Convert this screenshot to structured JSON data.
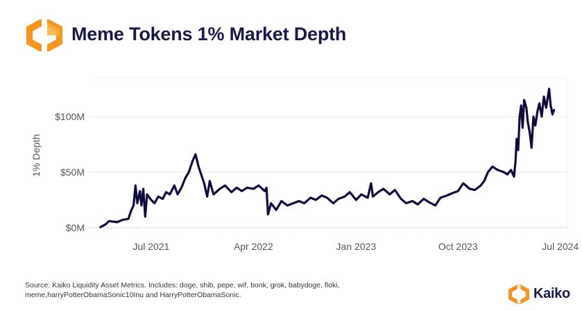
{
  "header": {
    "title": "Meme Tokens 1% Market Depth",
    "logo_icon": "kaiko-hexagon-logo-icon"
  },
  "colors": {
    "title": "#1a1849",
    "line": "#0f0c3d",
    "grid": "#e6e6e6",
    "axis_text": "#555555",
    "brand_orange": "#f7941d"
  },
  "chart_data": {
    "type": "line",
    "title": "",
    "xlabel": "",
    "ylabel": "1% Depth",
    "x_ticks": [
      "Jul 2021",
      "Apr 2022",
      "Jan 2023",
      "Oct 2023",
      "Jul 2024"
    ],
    "y_ticks": [
      "$0M",
      "$50M",
      "$100M"
    ],
    "ylim": [
      0,
      135
    ],
    "xlim": [
      "2021-01-15",
      "2024-07-20"
    ],
    "y_unit": "$M",
    "grid": "horizontal",
    "legend": "none",
    "series": [
      {
        "values": [
          [
            "2021-02-15",
            0.5
          ],
          [
            "2021-03-01",
            3
          ],
          [
            "2021-03-10",
            6
          ],
          [
            "2021-04-01",
            5
          ],
          [
            "2021-04-15",
            7
          ],
          [
            "2021-05-01",
            8
          ],
          [
            "2021-05-08",
            15
          ],
          [
            "2021-05-15",
            20
          ],
          [
            "2021-05-20",
            38
          ],
          [
            "2021-05-25",
            22
          ],
          [
            "2021-06-01",
            33
          ],
          [
            "2021-06-05",
            20
          ],
          [
            "2021-06-10",
            35
          ],
          [
            "2021-06-15",
            10
          ],
          [
            "2021-06-20",
            30
          ],
          [
            "2021-07-01",
            25
          ],
          [
            "2021-07-10",
            22
          ],
          [
            "2021-07-20",
            28
          ],
          [
            "2021-08-01",
            26
          ],
          [
            "2021-08-10",
            32
          ],
          [
            "2021-08-20",
            30
          ],
          [
            "2021-09-01",
            38
          ],
          [
            "2021-09-10",
            30
          ],
          [
            "2021-09-20",
            36
          ],
          [
            "2021-10-01",
            45
          ],
          [
            "2021-10-10",
            50
          ],
          [
            "2021-10-20",
            60
          ],
          [
            "2021-10-28",
            66
          ],
          [
            "2021-11-05",
            55
          ],
          [
            "2021-11-12",
            48
          ],
          [
            "2021-11-20",
            40
          ],
          [
            "2021-11-28",
            28
          ],
          [
            "2021-12-05",
            42
          ],
          [
            "2021-12-15",
            30
          ],
          [
            "2022-01-01",
            35
          ],
          [
            "2022-01-15",
            38
          ],
          [
            "2022-02-01",
            32
          ],
          [
            "2022-02-15",
            36
          ],
          [
            "2022-03-01",
            33
          ],
          [
            "2022-03-15",
            36
          ],
          [
            "2022-04-01",
            35
          ],
          [
            "2022-04-15",
            38
          ],
          [
            "2022-05-01",
            33
          ],
          [
            "2022-05-06",
            36
          ],
          [
            "2022-05-10",
            12
          ],
          [
            "2022-05-18",
            22
          ],
          [
            "2022-06-01",
            16
          ],
          [
            "2022-06-15",
            24
          ],
          [
            "2022-07-01",
            20
          ],
          [
            "2022-08-01",
            24
          ],
          [
            "2022-08-15",
            22
          ],
          [
            "2022-09-01",
            27
          ],
          [
            "2022-09-15",
            25
          ],
          [
            "2022-10-01",
            29
          ],
          [
            "2022-10-15",
            27
          ],
          [
            "2022-11-01",
            22
          ],
          [
            "2022-11-15",
            26
          ],
          [
            "2022-12-01",
            28
          ],
          [
            "2022-12-15",
            32
          ],
          [
            "2023-01-01",
            25
          ],
          [
            "2023-01-15",
            30
          ],
          [
            "2023-02-01",
            27
          ],
          [
            "2023-02-10",
            40
          ],
          [
            "2023-02-15",
            28
          ],
          [
            "2023-03-01",
            32
          ],
          [
            "2023-03-15",
            35
          ],
          [
            "2023-04-01",
            30
          ],
          [
            "2023-04-15",
            34
          ],
          [
            "2023-05-01",
            26
          ],
          [
            "2023-05-15",
            22
          ],
          [
            "2023-06-01",
            24
          ],
          [
            "2023-06-15",
            21
          ],
          [
            "2023-07-01",
            26
          ],
          [
            "2023-07-15",
            23
          ],
          [
            "2023-08-01",
            20
          ],
          [
            "2023-08-15",
            27
          ],
          [
            "2023-09-01",
            29
          ],
          [
            "2023-09-15",
            31
          ],
          [
            "2023-10-01",
            33
          ],
          [
            "2023-10-15",
            40
          ],
          [
            "2023-11-01",
            35
          ],
          [
            "2023-11-15",
            34
          ],
          [
            "2023-12-01",
            38
          ],
          [
            "2023-12-10",
            42
          ],
          [
            "2023-12-20",
            50
          ],
          [
            "2024-01-01",
            55
          ],
          [
            "2024-01-15",
            52
          ],
          [
            "2024-02-01",
            50
          ],
          [
            "2024-02-10",
            48
          ],
          [
            "2024-02-20",
            52
          ],
          [
            "2024-02-28",
            46
          ],
          [
            "2024-03-03",
            60
          ],
          [
            "2024-03-06",
            80
          ],
          [
            "2024-03-10",
            70
          ],
          [
            "2024-03-14",
            100
          ],
          [
            "2024-03-18",
            110
          ],
          [
            "2024-03-22",
            90
          ],
          [
            "2024-03-26",
            115
          ],
          [
            "2024-04-01",
            108
          ],
          [
            "2024-04-05",
            95
          ],
          [
            "2024-04-10",
            86
          ],
          [
            "2024-04-15",
            72
          ],
          [
            "2024-04-20",
            100
          ],
          [
            "2024-04-25",
            92
          ],
          [
            "2024-05-01",
            105
          ],
          [
            "2024-05-06",
            112
          ],
          [
            "2024-05-12",
            100
          ],
          [
            "2024-05-18",
            118
          ],
          [
            "2024-05-24",
            108
          ],
          [
            "2024-06-01",
            125
          ],
          [
            "2024-06-05",
            110
          ],
          [
            "2024-06-10",
            102
          ],
          [
            "2024-06-14",
            106
          ]
        ]
      }
    ]
  },
  "footer": {
    "source_line1": "Source: Kaiko Liquidity Asset Metrics. Includes:  doge, shib, pepe, wif, bonk, grok, babydoge, floki,",
    "source_line2": "meme,harryPotterObamaSonic10Inu and HarryPotterObamaSonic."
  },
  "brand": {
    "name": "Kaiko",
    "icon": "kaiko-brand-icon"
  }
}
